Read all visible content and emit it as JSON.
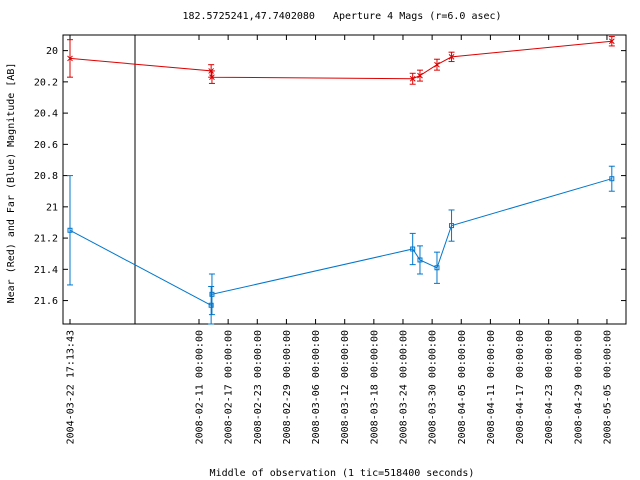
{
  "chart_data": {
    "type": "line",
    "title": "182.5725241,47.7402080   Aperture 4 Mags (r=6.0 asec)",
    "xlabel": "Middle of observation (1 tic=518400 seconds)",
    "ylabel": "Near (Red) and Far (Blue) Magnitude [AB]",
    "y_inverted": true,
    "ylim": [
      21.75,
      19.9
    ],
    "y_ticks": [
      "20",
      "20.2",
      "20.4",
      "20.6",
      "20.8",
      "21",
      "21.2",
      "21.4",
      "21.6"
    ],
    "x_tick_labels": [
      "2004-03-22 17:13:43",
      "2008-02-11 00:00:00",
      "2008-02-17 00:00:00",
      "2008-02-23 00:00:00",
      "2008-02-29 00:00:00",
      "2008-03-06 00:00:00",
      "2008-03-12 00:00:00",
      "2008-03-18 00:00:00",
      "2008-03-24 00:00:00",
      "2008-03-30 00:00:00",
      "2008-04-05 00:00:00",
      "2008-04-11 00:00:00",
      "2008-04-17 00:00:00",
      "2008-04-23 00:00:00",
      "2008-04-29 00:00:00",
      "2008-05-05 00:00:00"
    ],
    "axis_break_after": "2004-03-22 17:13:43",
    "grid": false,
    "series": [
      {
        "name": "Near (Red)",
        "color": "#dd0000",
        "marker": "x",
        "points": [
          {
            "x": "2004-03-22 17:13:43",
            "y": 20.05,
            "err": 0.12
          },
          {
            "x": "2008-02-13 12:00:00",
            "y": 20.13,
            "err": 0.04
          },
          {
            "x": "2008-02-13 16:00:00",
            "y": 20.17,
            "err": 0.04
          },
          {
            "x": "2008-03-26 00:00:00",
            "y": 20.18,
            "err": 0.035
          },
          {
            "x": "2008-03-27 12:00:00",
            "y": 20.16,
            "err": 0.035
          },
          {
            "x": "2008-03-31 00:00:00",
            "y": 20.09,
            "err": 0.035
          },
          {
            "x": "2008-04-03 00:00:00",
            "y": 20.04,
            "err": 0.03
          },
          {
            "x": "2008-05-06 00:00:00",
            "y": 19.94,
            "err": 0.03
          }
        ]
      },
      {
        "name": "Far (Blue)",
        "color": "#0077cc",
        "marker": "square",
        "points": [
          {
            "x": "2004-03-22 17:13:43",
            "y": 21.15,
            "err": 0.35
          },
          {
            "x": "2008-02-13 12:00:00",
            "y": 21.63,
            "err": 0.12
          },
          {
            "x": "2008-02-13 16:00:00",
            "y": 21.56,
            "err": 0.13
          },
          {
            "x": "2008-03-26 00:00:00",
            "y": 21.27,
            "err": 0.1
          },
          {
            "x": "2008-03-27 12:00:00",
            "y": 21.34,
            "err": 0.09
          },
          {
            "x": "2008-03-31 00:00:00",
            "y": 21.39,
            "err": 0.1
          },
          {
            "x": "2008-04-03 00:00:00",
            "y": 21.12,
            "err": 0.1
          },
          {
            "x": "2008-05-06 00:00:00",
            "y": 20.82,
            "err": 0.08
          }
        ]
      }
    ]
  }
}
